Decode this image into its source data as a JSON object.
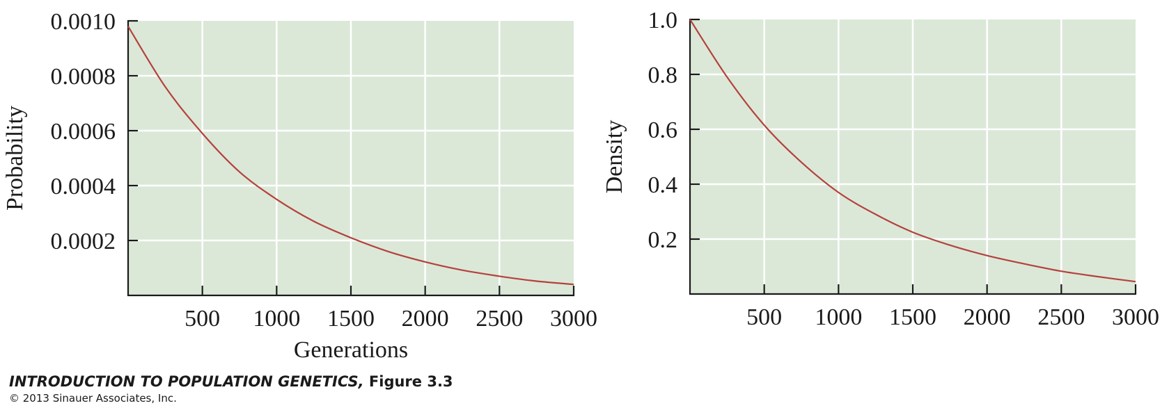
{
  "chart_data": [
    {
      "type": "line",
      "title": "",
      "xlabel": "Generations",
      "ylabel": "Probability",
      "xlim": [
        0,
        3000
      ],
      "ylim": [
        0,
        0.001
      ],
      "xticks": [
        500,
        1000,
        1500,
        2000,
        2500,
        3000
      ],
      "xtick_labels": [
        "500",
        "1000",
        "1500",
        "2000",
        "2500",
        "3000"
      ],
      "yticks": [
        0.0002,
        0.0004,
        0.0006,
        0.0008,
        0.001
      ],
      "ytick_labels": [
        "0.0002",
        "0.0004",
        "0.0006",
        "0.0008",
        "0.0010"
      ],
      "grid": true,
      "plot_background": "#dbe8d8",
      "line_color": "#b5413c",
      "series": [
        {
          "x": [
            0,
            250,
            500,
            750,
            1000,
            1250,
            1500,
            1750,
            2000,
            2250,
            2500,
            2750,
            3000
          ],
          "y": [
            0.00098,
            0.00076,
            0.00059,
            0.00045,
            0.00035,
            0.00027,
            0.00021,
            0.00016,
            0.000122,
            9.2e-05,
            7e-05,
            5.2e-05,
            4e-05
          ]
        }
      ]
    },
    {
      "type": "line",
      "title": "",
      "xlabel": "",
      "ylabel": "Density",
      "xlim": [
        0,
        3000
      ],
      "ylim": [
        0,
        1.0
      ],
      "xticks": [
        500,
        1000,
        1500,
        2000,
        2500,
        3000
      ],
      "xtick_labels": [
        "500",
        "1000",
        "1500",
        "2000",
        "2500",
        "3000"
      ],
      "yticks": [
        0.2,
        0.4,
        0.6,
        0.8,
        1.0
      ],
      "ytick_labels": [
        "0.2",
        "0.4",
        "0.6",
        "0.8",
        "1.0"
      ],
      "grid": true,
      "plot_background": "#dbe8d8",
      "line_color": "#b5413c",
      "series": [
        {
          "x": [
            0,
            250,
            500,
            750,
            1000,
            1250,
            1500,
            1750,
            2000,
            2250,
            2500,
            2750,
            3000
          ],
          "y": [
            1.0,
            0.79,
            0.615,
            0.48,
            0.37,
            0.29,
            0.225,
            0.178,
            0.14,
            0.11,
            0.083,
            0.063,
            0.045
          ]
        }
      ]
    }
  ],
  "caption": {
    "book": "INTRODUCTION TO POPULATION GENETICS,",
    "figure": " Figure 3.3",
    "copyright": "© 2013 Sinauer Associates, Inc."
  }
}
